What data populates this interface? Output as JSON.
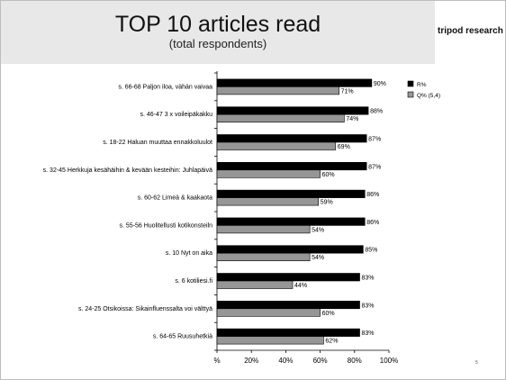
{
  "header": {
    "title": "TOP 10 articles read",
    "subtitle": "(total respondents)",
    "brand": "tripod research"
  },
  "page_number": "5",
  "chart_data": {
    "type": "bar",
    "orientation": "horizontal",
    "categories": [
      "s. 66-68 Paljon iloa, vähän vaivaa",
      "s. 46-47 3 x voileipäkakku",
      "s. 18-22 Haluan muuttaa ennakkoluulot",
      "s. 32-45 Herkkuja kesähäihin & kevään kesteihin: Juhlapäivä",
      "s. 60-62 Limeä & kaakaota",
      "s. 55-56 Huolitellusti kotikonsteiln",
      "s. 10 Nyt on aika",
      "s. 6 kotiliesi.fi",
      "s. 24-25 Otsikoissa: Sikainfluenssalta voi välttyä",
      "s. 64-65 Ruusuhetkiä"
    ],
    "series": [
      {
        "name": "R%",
        "color": "#000000",
        "values": [
          90,
          88,
          87,
          87,
          86,
          86,
          85,
          83,
          83,
          83
        ],
        "labels": [
          "90%",
          "88%",
          "87%",
          "87%",
          "86%",
          "86%",
          "85%",
          "83%",
          "83%",
          "83%"
        ]
      },
      {
        "name": "Q% (5,4)",
        "color": "#969696",
        "values": [
          71,
          74,
          69,
          60,
          59,
          54,
          54,
          44,
          60,
          62
        ],
        "labels": [
          "71%",
          "74%",
          "69%",
          "60%",
          "59%",
          "54%",
          "54%",
          "44%",
          "60%",
          "62%"
        ]
      }
    ],
    "xlim": [
      0,
      100
    ],
    "xticks": [
      "%",
      "20%",
      "40%",
      "60%",
      "80%",
      "100%"
    ],
    "grid": false,
    "legend": "top-right"
  }
}
